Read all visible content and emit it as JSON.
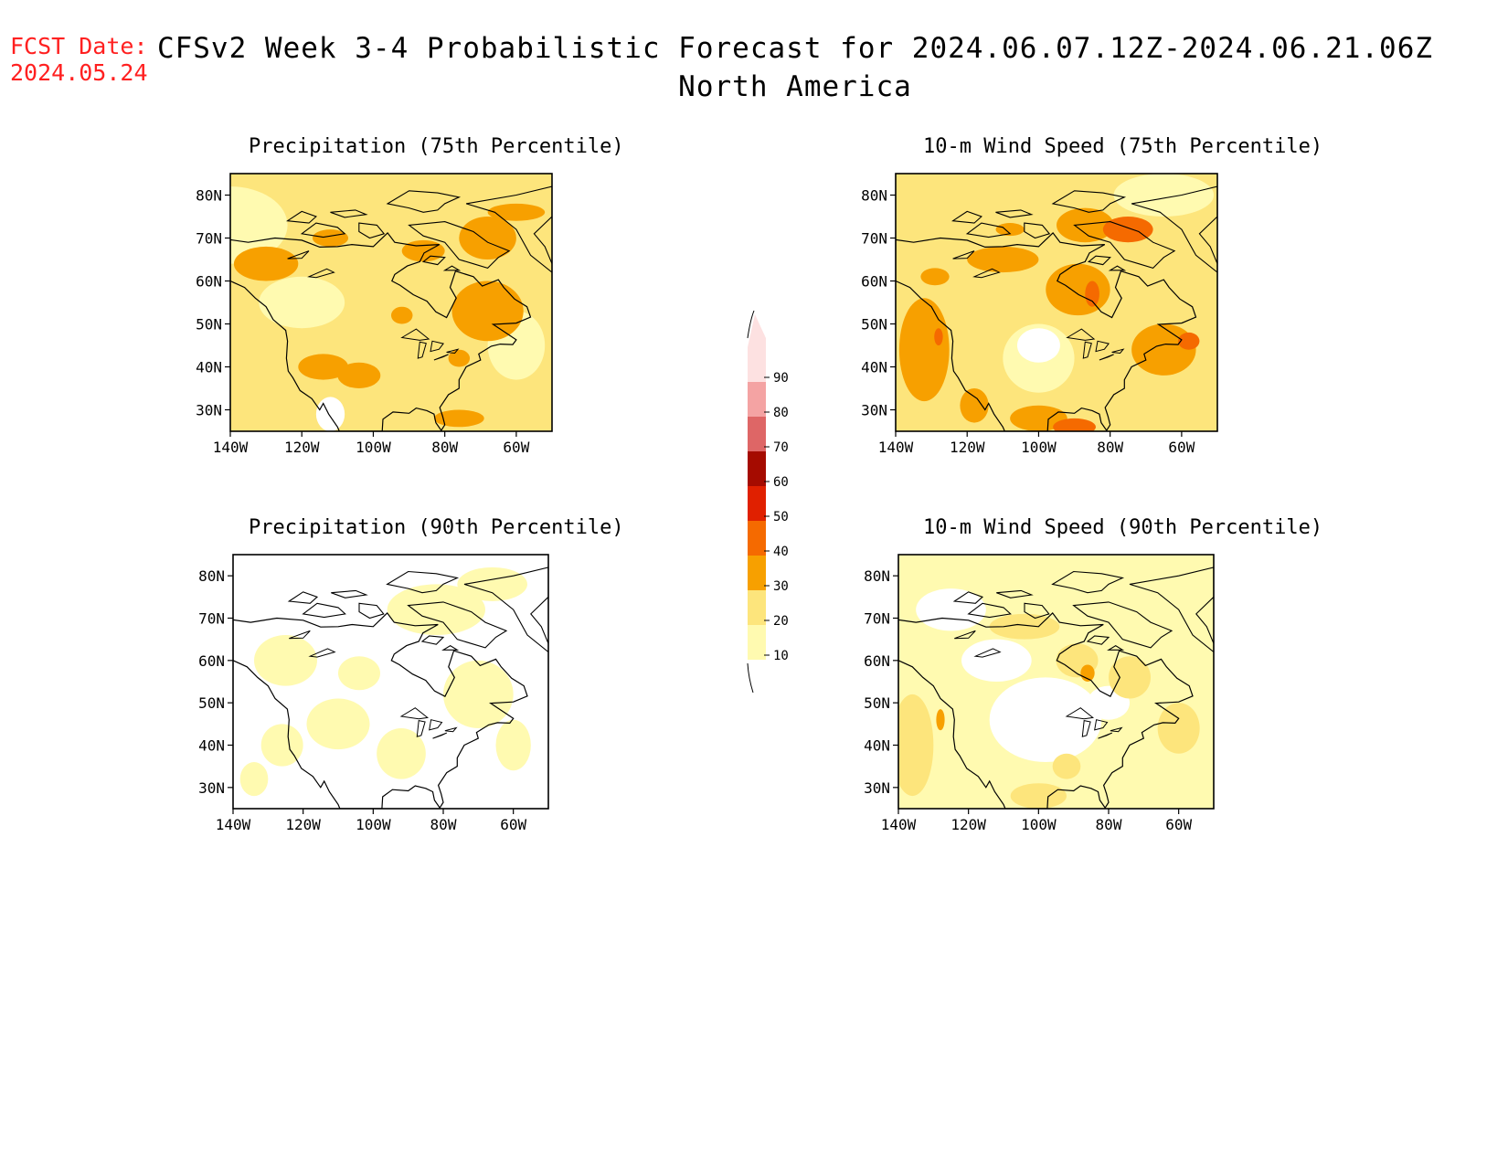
{
  "header": {
    "fcst_label": "FCST Date:",
    "fcst_date": "2024.05.24",
    "title_line1": "CFSv2 Week 3-4 Probabilistic Forecast for 2024.06.07.12Z-2024.06.21.06Z",
    "title_line2": "North America"
  },
  "panels": [
    {
      "title": "Precipitation (75th Percentile)",
      "variable": "precipitation",
      "percentile": 75,
      "dominant_category": "20-30",
      "hotspots_category": "30-40"
    },
    {
      "title": "10-m Wind Speed (75th Percentile)",
      "variable": "wind_speed_10m",
      "percentile": 75,
      "dominant_category": "20-30",
      "hotspots_category": "30-40"
    },
    {
      "title": "Precipitation (90th Percentile)",
      "variable": "precipitation",
      "percentile": 90,
      "dominant_category": "0-10",
      "hotspots_category": "10-20"
    },
    {
      "title": "10-m Wind Speed (90th Percentile)",
      "variable": "wind_speed_10m",
      "percentile": 90,
      "dominant_category": "10-20",
      "hotspots_category": "20-30"
    }
  ],
  "axes": {
    "lat_labels": [
      "80N",
      "70N",
      "60N",
      "50N",
      "40N",
      "30N"
    ],
    "lat_values": [
      80,
      70,
      60,
      50,
      40,
      30
    ],
    "lon_labels": [
      "140W",
      "120W",
      "100W",
      "80W",
      "60W"
    ],
    "lon_values": [
      -140,
      -120,
      -100,
      -80,
      -60
    ],
    "lat_range": [
      25,
      85
    ],
    "lon_range": [
      -140,
      -50
    ]
  },
  "colorbar": {
    "labels": [
      "10",
      "20",
      "30",
      "40",
      "50",
      "60",
      "70",
      "80",
      "90"
    ],
    "colors": [
      "#fffab0",
      "#fde57c",
      "#f7a000",
      "#f56a00",
      "#e02000",
      "#a50b00",
      "#de6666",
      "#f4a3a3",
      "#fde1e1"
    ]
  }
}
